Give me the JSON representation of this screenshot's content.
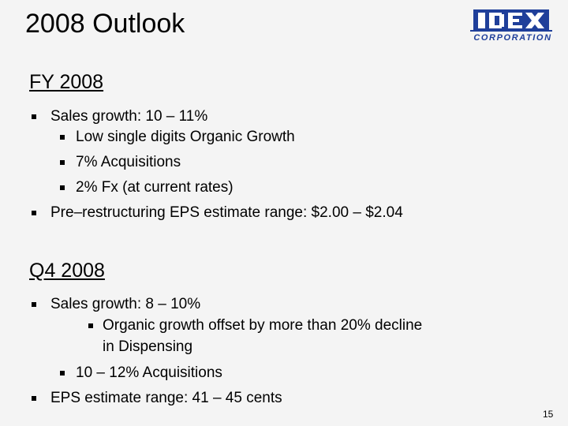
{
  "slide": {
    "title": "2008 Outlook",
    "page_number": "15"
  },
  "logo": {
    "wordmark": "IDEX",
    "subtitle": "CORPORATION",
    "color": "#1f3f9a"
  },
  "fy": {
    "heading": "FY 2008",
    "sales_growth": "Sales growth:  10 – 11%",
    "organic": "Low single digits Organic Growth",
    "acquisitions": "7% Acquisitions",
    "fx": "2% Fx (at current rates)",
    "eps": "Pre–restructuring EPS estimate range:  $2.00 – $2.04"
  },
  "q4": {
    "heading": "Q4 2008",
    "sales_growth": "Sales growth:  8 – 10%",
    "organic_line1": "Organic growth offset by more than 20% decline",
    "organic_line2": "in Dispensing",
    "acquisitions": "10 – 12% Acquisitions",
    "eps": "EPS estimate range:  41 – 45 cents"
  }
}
